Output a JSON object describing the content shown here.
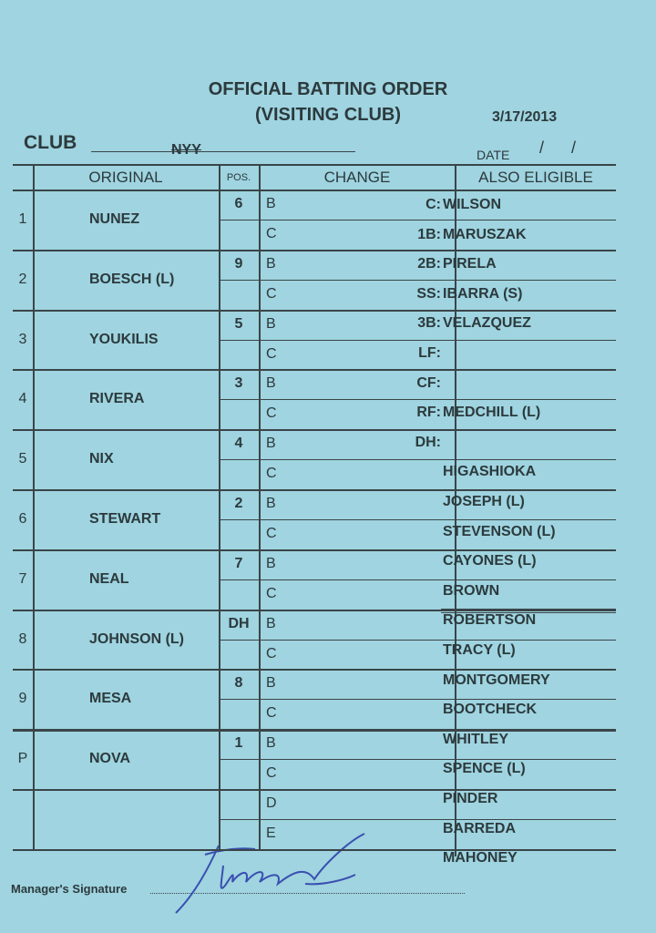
{
  "header": {
    "title_line1": "OFFICIAL BATTING ORDER",
    "title_line2": "(VISITING CLUB)",
    "handwritten_date": "3/17/2013",
    "club_label": "CLUB",
    "club_value": "NYY",
    "date_label": "DATE",
    "date_separators": "/      /"
  },
  "columns": {
    "original": "ORIGINAL",
    "pos": "POS.",
    "change": "CHANGE",
    "also_eligible": "ALSO ELIGIBLE"
  },
  "lineup": [
    {
      "num": "1",
      "name": "NUNEZ",
      "pos": "6"
    },
    {
      "num": "2",
      "name": "BOESCH (L)",
      "pos": "9"
    },
    {
      "num": "3",
      "name": "YOUKILIS",
      "pos": "5"
    },
    {
      "num": "4",
      "name": "RIVERA",
      "pos": "3"
    },
    {
      "num": "5",
      "name": "NIX",
      "pos": "4"
    },
    {
      "num": "6",
      "name": "STEWART",
      "pos": "2"
    },
    {
      "num": "7",
      "name": "NEAL",
      "pos": "7"
    },
    {
      "num": "8",
      "name": "JOHNSON (L)",
      "pos": "DH"
    },
    {
      "num": "9",
      "name": "MESA",
      "pos": "8"
    },
    {
      "num": "P",
      "name": "NOVA",
      "pos": "1"
    }
  ],
  "change_letters": {
    "b": "B",
    "c": "C",
    "d": "D",
    "e": "E"
  },
  "also_eligible": [
    {
      "label": "C:",
      "name": "WILSON"
    },
    {
      "label": "1B:",
      "name": "MARUSZAK"
    },
    {
      "label": "2B:",
      "name": "PIRELA"
    },
    {
      "label": "SS:",
      "name": "IBARRA (S)"
    },
    {
      "label": "3B:",
      "name": "VELAZQUEZ"
    },
    {
      "label": "LF:",
      "name": ""
    },
    {
      "label": "CF:",
      "name": ""
    },
    {
      "label": "RF:",
      "name": "MEDCHILL (L)"
    },
    {
      "label": "DH:",
      "name": ""
    },
    {
      "label": "",
      "name": "HIGASHIOKA"
    },
    {
      "label": "",
      "name": "JOSEPH (L)"
    },
    {
      "label": "",
      "name": "STEVENSON (L)"
    },
    {
      "label": "",
      "name": "CAYONES (L)"
    },
    {
      "label": "",
      "name": "BROWN"
    },
    {
      "label": "",
      "name": "ROBERTSON"
    },
    {
      "label": "",
      "name": "TRACY (L)"
    },
    {
      "label": "",
      "name": "MONTGOMERY"
    },
    {
      "label": "",
      "name": "BOOTCHECK"
    },
    {
      "label": "",
      "name": "WHITLEY"
    },
    {
      "label": "",
      "name": "SPENCE (L)"
    },
    {
      "label": "",
      "name": "PINDER"
    },
    {
      "label": "",
      "name": "BARREDA"
    },
    {
      "label": "",
      "name": "MAHONEY"
    }
  ],
  "footer": {
    "signature_label": "Manager's Signature"
  },
  "colors": {
    "card": "#9fd4e0",
    "ink": "#2c3a3d",
    "signature_ink": "#3a4fb0"
  }
}
